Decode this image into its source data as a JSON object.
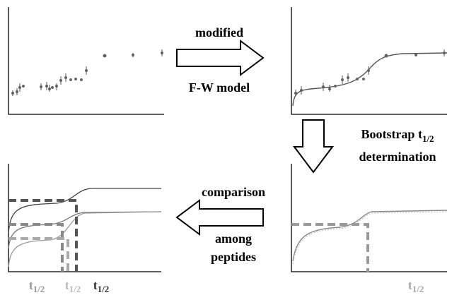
{
  "steps": {
    "fit": {
      "lines": [
        "modified",
        "F-W model"
      ]
    },
    "bootstrap": {
      "line1": "Bootstrap ",
      "symbol": "t",
      "subscript": "1/2",
      "line2": "determination"
    },
    "compare": {
      "lines": [
        "comparison",
        "among",
        "peptides"
      ]
    }
  },
  "t_labels": [
    {
      "symbol": "t",
      "subscript": "1/2",
      "color": "#999999"
    },
    {
      "symbol": "t",
      "subscript": "1/2",
      "color": "#bbbbbb"
    },
    {
      "symbol": "t",
      "subscript": "1/2",
      "color": "#333333"
    },
    {
      "symbol": "t",
      "subscript": "1/2",
      "color": "#aaaaaa"
    }
  ]
}
